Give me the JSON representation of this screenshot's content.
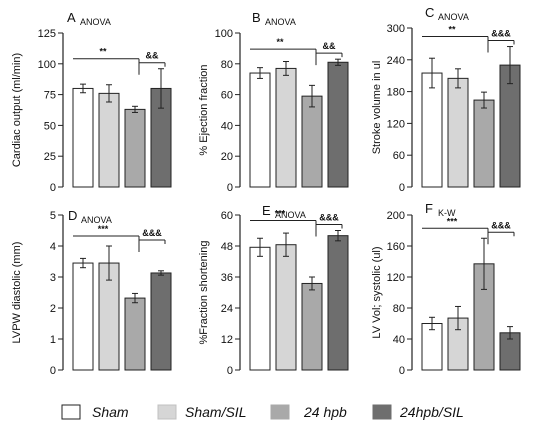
{
  "groups": [
    "Sham",
    "Sham/SIL",
    "24 hpb",
    "24hpb/SIL"
  ],
  "colors": {
    "Sham": "#ffffff",
    "Sham/SIL": "#d6d6d6",
    "24 hpb": "#a9a9a9",
    "24hpb/SIL": "#6e6e6e",
    "stroke": "#222222"
  },
  "legend": {
    "items": [
      {
        "label": "Sham",
        "color": "#ffffff"
      },
      {
        "label": "Sham/SIL",
        "color": "#d6d6d6"
      },
      {
        "label": "24 hpb",
        "color": "#a9a9a9"
      },
      {
        "label": "24hpb/SIL",
        "color": "#6e6e6e"
      }
    ]
  },
  "chart_data": [
    {
      "type": "bar",
      "panel": "A",
      "test": "ANOVA",
      "ylabel": "Cardiac output (ml/min)",
      "ylim": [
        0,
        125
      ],
      "yticks": [
        0,
        25,
        50,
        75,
        100,
        125
      ],
      "categories": [
        "Sham",
        "Sham/SIL",
        "24 hpb",
        "24hpb/SIL"
      ],
      "values": [
        80,
        76,
        63,
        80
      ],
      "errors": [
        3.5,
        7,
        2.5,
        16
      ],
      "significance": [
        {
          "from": 0,
          "to": 2,
          "label": "**"
        },
        {
          "from": 2,
          "to": 3,
          "label": "&&"
        }
      ]
    },
    {
      "type": "bar",
      "panel": "B",
      "test": "ANOVA",
      "ylabel": "% Ejection fraction",
      "ylim": [
        0,
        100
      ],
      "yticks": [
        0,
        20,
        40,
        60,
        80,
        100
      ],
      "categories": [
        "Sham",
        "Sham/SIL",
        "24 hpb",
        "24hpb/SIL"
      ],
      "values": [
        74,
        77,
        59,
        81
      ],
      "errors": [
        3.5,
        4.5,
        7,
        2
      ],
      "significance": [
        {
          "from": 0,
          "to": 2,
          "label": "**"
        },
        {
          "from": 2,
          "to": 3,
          "label": "&&"
        }
      ]
    },
    {
      "type": "bar",
      "panel": "C",
      "test": "ANOVA",
      "ylabel": "Stroke volume in ul",
      "ylim": [
        0,
        300
      ],
      "yticks": [
        0,
        60,
        120,
        180,
        240,
        300
      ],
      "categories": [
        "Sham",
        "Sham/SIL",
        "24 hpb",
        "24hpb/SIL"
      ],
      "values": [
        215,
        205,
        164,
        230
      ],
      "errors": [
        28,
        18,
        15,
        35
      ],
      "significance": [
        {
          "from": 0,
          "to": 2,
          "label": "**"
        },
        {
          "from": 2,
          "to": 3,
          "label": "&&&"
        }
      ]
    },
    {
      "type": "bar",
      "panel": "D",
      "test": "ANOVA",
      "ylabel": "LVPW  diastolic (mm)",
      "ylim": [
        0,
        5
      ],
      "yticks": [
        0,
        1,
        2,
        3,
        4,
        5
      ],
      "categories": [
        "Sham",
        "Sham/SIL",
        "24 hpb",
        "24hpb/SIL"
      ],
      "values": [
        3.45,
        3.45,
        2.32,
        3.13
      ],
      "errors": [
        0.15,
        0.55,
        0.15,
        0.07
      ],
      "significance": [
        {
          "from": 0,
          "to": 2,
          "label": "***"
        },
        {
          "from": 2,
          "to": 3,
          "label": "&&&"
        }
      ]
    },
    {
      "type": "bar",
      "panel": "E",
      "test": "ANOVA",
      "ylabel": "%Fraction shortening",
      "ylim": [
        0,
        60
      ],
      "yticks": [
        0,
        12,
        24,
        36,
        48,
        60
      ],
      "categories": [
        "Sham",
        "Sham/SIL",
        "24 hpb",
        "24hpb/SIL"
      ],
      "values": [
        47.5,
        48.5,
        33.5,
        52
      ],
      "errors": [
        3.5,
        4.5,
        2.5,
        2
      ],
      "significance": [
        {
          "from": 0,
          "to": 2,
          "label": "***"
        },
        {
          "from": 2,
          "to": 3,
          "label": "&&&"
        }
      ]
    },
    {
      "type": "bar",
      "panel": "F",
      "test": "K-W",
      "ylabel": "LV Vol; systolic (ul)",
      "ylim": [
        0,
        200
      ],
      "yticks": [
        0,
        40,
        80,
        120,
        160,
        200
      ],
      "categories": [
        "Sham",
        "Sham/SIL",
        "24 hpb",
        "24hpb/SIL"
      ],
      "values": [
        60,
        67,
        137,
        48
      ],
      "errors": [
        8,
        15,
        33,
        8
      ],
      "significance": [
        {
          "from": 0,
          "to": 2,
          "label": "***"
        },
        {
          "from": 2,
          "to": 3,
          "label": "&&&"
        }
      ]
    }
  ]
}
